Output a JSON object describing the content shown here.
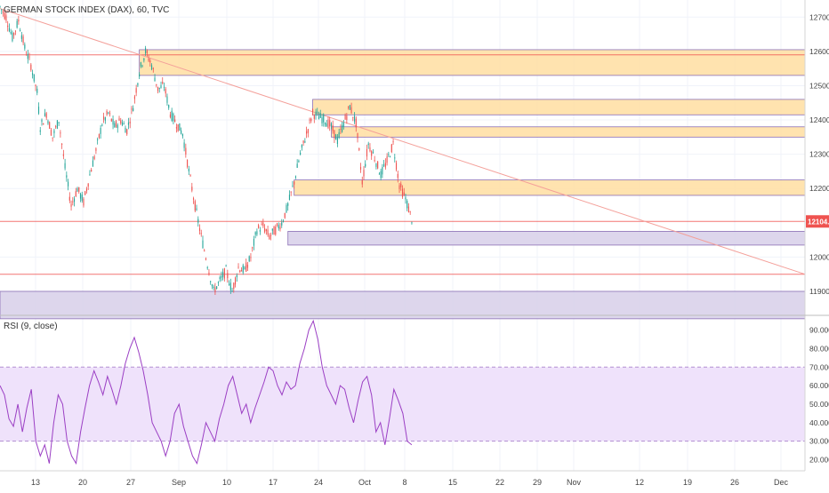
{
  "header": {
    "title": "GERMAN STOCK INDEX (DAX), 60, TVC"
  },
  "chart_data": [
    {
      "type": "candlestick",
      "title": "GERMAN STOCK INDEX (DAX), 60, TVC",
      "ylim": [
        11830,
        12750
      ],
      "y_ticks": [
        "12700.0",
        "12600.0",
        "12500.0",
        "12400.0",
        "12300.0",
        "12200.0",
        "12000.0",
        "11900.0"
      ],
      "y_tick_values": [
        12700,
        12600,
        12500,
        12400,
        12300,
        12200,
        12000,
        11900
      ],
      "x_ticks": [
        "13",
        "20",
        "27",
        "Sep",
        "10",
        "17",
        "24",
        "Oct",
        "8",
        "15",
        "22",
        "29",
        "Nov",
        "12",
        "19",
        "26",
        "Dec"
      ],
      "last_price_label": "12104.0",
      "last_price": 12104,
      "colors": {
        "up": "#26a69a",
        "down": "#ef5350",
        "trendline": "#f4a09a",
        "resistance_zone": "#ffe0a6",
        "support_zone": "#d9d2ea",
        "hline": "#ef5350",
        "price_label_bg": "#ef5350"
      },
      "price_path": [
        [
          0,
          12730
        ],
        [
          2,
          12700
        ],
        [
          4,
          12640
        ],
        [
          6,
          12690
        ],
        [
          8,
          12610
        ],
        [
          10,
          12560
        ],
        [
          12,
          12480
        ],
        [
          13,
          12380
        ],
        [
          15,
          12420
        ],
        [
          17,
          12350
        ],
        [
          19,
          12400
        ],
        [
          21,
          12260
        ],
        [
          23,
          12150
        ],
        [
          25,
          12200
        ],
        [
          27,
          12160
        ],
        [
          29,
          12240
        ],
        [
          31,
          12310
        ],
        [
          33,
          12390
        ],
        [
          35,
          12420
        ],
        [
          37,
          12380
        ],
        [
          39,
          12400
        ],
        [
          41,
          12370
        ],
        [
          43,
          12440
        ],
        [
          45,
          12540
        ],
        [
          47,
          12600
        ],
        [
          49,
          12560
        ],
        [
          51,
          12490
        ],
        [
          53,
          12500
        ],
        [
          55,
          12420
        ],
        [
          57,
          12390
        ],
        [
          59,
          12360
        ],
        [
          61,
          12250
        ],
        [
          63,
          12150
        ],
        [
          65,
          12060
        ],
        [
          67,
          11980
        ],
        [
          69,
          11900
        ],
        [
          71,
          11930
        ],
        [
          73,
          11960
        ],
        [
          75,
          11900
        ],
        [
          77,
          11970
        ],
        [
          79,
          11960
        ],
        [
          81,
          12000
        ],
        [
          83,
          12080
        ],
        [
          85,
          12090
        ],
        [
          87,
          12060
        ],
        [
          89,
          12080
        ],
        [
          91,
          12100
        ],
        [
          93,
          12150
        ],
        [
          95,
          12220
        ],
        [
          97,
          12300
        ],
        [
          99,
          12360
        ],
        [
          101,
          12420
        ],
        [
          103,
          12410
        ],
        [
          105,
          12400
        ],
        [
          107,
          12380
        ],
        [
          109,
          12340
        ],
        [
          111,
          12390
        ],
        [
          113,
          12440
        ],
        [
          115,
          12390
        ],
        [
          117,
          12220
        ],
        [
          119,
          12330
        ],
        [
          121,
          12290
        ],
        [
          123,
          12240
        ],
        [
          125,
          12280
        ],
        [
          127,
          12330
        ],
        [
          129,
          12210
        ],
        [
          131,
          12170
        ],
        [
          133,
          12110
        ]
      ],
      "trendlines": [
        {
          "from": [
            0,
            12725
          ],
          "to": [
            260,
            11950
          ]
        }
      ],
      "horizontal_lines": [
        {
          "price": 12590
        },
        {
          "price": 12104
        },
        {
          "price": 11950
        }
      ],
      "zones": [
        {
          "kind": "resistance",
          "y_top": 12605,
          "y_bottom": 12530,
          "x_start": 45
        },
        {
          "kind": "resistance",
          "y_top": 12460,
          "y_bottom": 12415,
          "x_start": 101
        },
        {
          "kind": "resistance",
          "y_top": 12380,
          "y_bottom": 12350,
          "x_start": 107
        },
        {
          "kind": "resistance",
          "y_top": 12225,
          "y_bottom": 12180,
          "x_start": 95
        },
        {
          "kind": "support",
          "y_top": 12075,
          "y_bottom": 12035,
          "x_start": 93
        },
        {
          "kind": "support",
          "y_top": 11900,
          "y_bottom": 11820,
          "x_start": 0
        }
      ]
    },
    {
      "type": "line",
      "title": "RSI (9, close)",
      "ylim": [
        14,
        97
      ],
      "y_ticks": [
        "90.0000",
        "80.0000",
        "70.0000",
        "60.0000",
        "50.0000",
        "40.0000",
        "30.0000",
        "20.0000"
      ],
      "y_tick_values": [
        90,
        80,
        70,
        60,
        50,
        40,
        30,
        20
      ],
      "band": [
        30,
        70
      ],
      "colors": {
        "line": "#9b3fc4",
        "band_fill": "#efe2fb",
        "band_border": "#b38fd1"
      },
      "series": [
        {
          "values": [
            60,
            55,
            42,
            38,
            50,
            35,
            48,
            58,
            30,
            22,
            28,
            18,
            40,
            55,
            50,
            30,
            22,
            18,
            35,
            48,
            60,
            68,
            62,
            55,
            65,
            58,
            50,
            60,
            72,
            80,
            86,
            78,
            68,
            55,
            40,
            35,
            30,
            22,
            30,
            45,
            50,
            38,
            30,
            22,
            18,
            28,
            40,
            35,
            30,
            42,
            50,
            60,
            65,
            55,
            45,
            50,
            40,
            48,
            55,
            62,
            70,
            68,
            60,
            55,
            62,
            58,
            60,
            72,
            80,
            90,
            95,
            85,
            70,
            60,
            55,
            50,
            60,
            58,
            48,
            40,
            52,
            62,
            65,
            55,
            35,
            40,
            28,
            42,
            58,
            52,
            45,
            30,
            28
          ]
        }
      ]
    }
  ]
}
